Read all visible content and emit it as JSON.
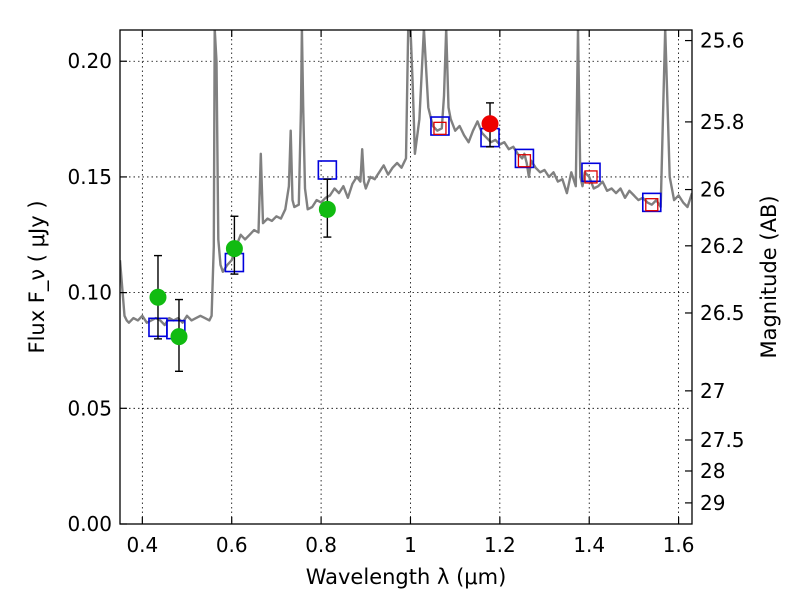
{
  "chart_data": {
    "type": "scatter",
    "xlabel": "Wavelength  λ (μm)",
    "ylabel": "Flux  F_ν  ( μJy )",
    "y2label": "Magnitude (AB)",
    "xlim": [
      0.35,
      1.63
    ],
    "ylim": [
      0.0,
      0.2135
    ],
    "x_ticks": [
      0.4,
      0.6,
      0.8,
      1.0,
      1.2,
      1.4,
      1.6
    ],
    "x_tick_labels": [
      "0.4",
      "0.6",
      "0.8",
      "1",
      "1.2",
      "1.4",
      "1.6"
    ],
    "y_ticks": [
      0.0,
      0.05,
      0.1,
      0.15,
      0.2
    ],
    "y_tick_labels": [
      "0.00",
      "0.05",
      "0.10",
      "0.15",
      "0.20"
    ],
    "mag_ticks": [
      25.6,
      25.8,
      26,
      26.2,
      26.5,
      27,
      27.5,
      28,
      29
    ],
    "mag_tick_labels": [
      "25.6",
      "25.8",
      "26",
      "26.2",
      "26.5",
      "27",
      "27.5",
      "28",
      "29"
    ],
    "grid": true,
    "colors": {
      "model": "#808080",
      "green": "#11bb11",
      "red": "#ee0000",
      "blue_square": "#0000dd",
      "red_square": "#dd0000",
      "errorbar": "#000000"
    },
    "series": [
      {
        "name": "model spectrum",
        "kind": "line",
        "x": [
          0.35,
          0.36,
          0.365,
          0.37,
          0.38,
          0.39,
          0.4,
          0.41,
          0.42,
          0.43,
          0.44,
          0.45,
          0.46,
          0.47,
          0.48,
          0.49,
          0.5,
          0.51,
          0.52,
          0.53,
          0.54,
          0.55,
          0.555,
          0.56,
          0.562,
          0.566,
          0.57,
          0.575,
          0.58,
          0.59,
          0.6,
          0.61,
          0.62,
          0.63,
          0.64,
          0.65,
          0.66,
          0.665,
          0.67,
          0.68,
          0.69,
          0.7,
          0.71,
          0.72,
          0.728,
          0.732,
          0.736,
          0.74,
          0.75,
          0.755,
          0.757,
          0.76,
          0.764,
          0.77,
          0.78,
          0.79,
          0.8,
          0.81,
          0.82,
          0.83,
          0.84,
          0.85,
          0.86,
          0.87,
          0.88,
          0.888,
          0.892,
          0.896,
          0.9,
          0.91,
          0.92,
          0.93,
          0.94,
          0.95,
          0.96,
          0.97,
          0.98,
          0.99,
          0.995,
          1.0,
          1.005,
          1.01,
          1.02,
          1.03,
          1.04,
          1.05,
          1.06,
          1.07,
          1.075,
          1.08,
          1.085,
          1.09,
          1.1,
          1.11,
          1.12,
          1.13,
          1.14,
          1.15,
          1.16,
          1.17,
          1.18,
          1.19,
          1.2,
          1.21,
          1.22,
          1.23,
          1.24,
          1.25,
          1.255,
          1.26,
          1.265,
          1.27,
          1.28,
          1.29,
          1.3,
          1.31,
          1.32,
          1.33,
          1.34,
          1.35,
          1.36,
          1.37,
          1.375,
          1.38,
          1.385,
          1.39,
          1.4,
          1.41,
          1.42,
          1.43,
          1.44,
          1.45,
          1.46,
          1.47,
          1.48,
          1.49,
          1.5,
          1.51,
          1.52,
          1.53,
          1.54,
          1.55,
          1.56,
          1.57,
          1.58,
          1.59,
          1.6,
          1.61,
          1.62,
          1.63
        ],
        "y": [
          0.114,
          0.09,
          0.088,
          0.087,
          0.089,
          0.088,
          0.09,
          0.087,
          0.088,
          0.089,
          0.088,
          0.086,
          0.089,
          0.088,
          0.089,
          0.087,
          0.09,
          0.088,
          0.089,
          0.09,
          0.089,
          0.088,
          0.09,
          0.12,
          0.214,
          0.2,
          0.123,
          0.112,
          0.109,
          0.112,
          0.114,
          0.12,
          0.125,
          0.123,
          0.125,
          0.127,
          0.126,
          0.16,
          0.13,
          0.132,
          0.131,
          0.133,
          0.132,
          0.136,
          0.146,
          0.17,
          0.14,
          0.137,
          0.138,
          0.18,
          0.214,
          0.18,
          0.145,
          0.136,
          0.137,
          0.14,
          0.139,
          0.141,
          0.142,
          0.145,
          0.143,
          0.146,
          0.141,
          0.147,
          0.15,
          0.148,
          0.162,
          0.148,
          0.145,
          0.15,
          0.149,
          0.152,
          0.155,
          0.151,
          0.154,
          0.156,
          0.154,
          0.158,
          0.214,
          0.214,
          0.19,
          0.16,
          0.175,
          0.214,
          0.18,
          0.172,
          0.17,
          0.171,
          0.185,
          0.214,
          0.18,
          0.175,
          0.17,
          0.172,
          0.168,
          0.165,
          0.17,
          0.174,
          0.169,
          0.167,
          0.165,
          0.166,
          0.164,
          0.165,
          0.162,
          0.163,
          0.16,
          0.158,
          0.16,
          0.156,
          0.15,
          0.157,
          0.154,
          0.152,
          0.153,
          0.15,
          0.152,
          0.148,
          0.149,
          0.143,
          0.152,
          0.146,
          0.214,
          0.15,
          0.146,
          0.152,
          0.15,
          0.145,
          0.146,
          0.148,
          0.144,
          0.145,
          0.143,
          0.145,
          0.141,
          0.144,
          0.142,
          0.14,
          0.141,
          0.139,
          0.138,
          0.14,
          0.137,
          0.214,
          0.15,
          0.14,
          0.142,
          0.139,
          0.137,
          0.143
        ]
      },
      {
        "name": "photometry (green)",
        "kind": "points",
        "x": [
          0.435,
          0.482,
          0.606,
          0.814
        ],
        "y": [
          0.098,
          0.081,
          0.119,
          0.136
        ],
        "yerr_low": [
          0.08,
          0.066,
          0.108,
          0.124
        ],
        "yerr_high": [
          0.116,
          0.097,
          0.133,
          0.149
        ]
      },
      {
        "name": "photometry (red)",
        "kind": "points",
        "x": [
          1.178
        ],
        "y": [
          0.173
        ],
        "yerr_low": [
          0.163
        ],
        "yerr_high": [
          0.182
        ]
      },
      {
        "name": "model magnitudes (blue squares)",
        "kind": "squares",
        "x": [
          0.435,
          0.475,
          0.606,
          0.814,
          1.066,
          1.178,
          1.255,
          1.404,
          1.54
        ],
        "y": [
          0.085,
          0.084,
          0.113,
          0.153,
          0.172,
          0.167,
          0.158,
          0.152,
          0.139
        ]
      },
      {
        "name": "model magnitudes (red squares)",
        "kind": "squares",
        "x": [
          1.066,
          1.255,
          1.404,
          1.54
        ],
        "y": [
          0.171,
          0.157,
          0.15,
          0.138
        ]
      }
    ]
  }
}
